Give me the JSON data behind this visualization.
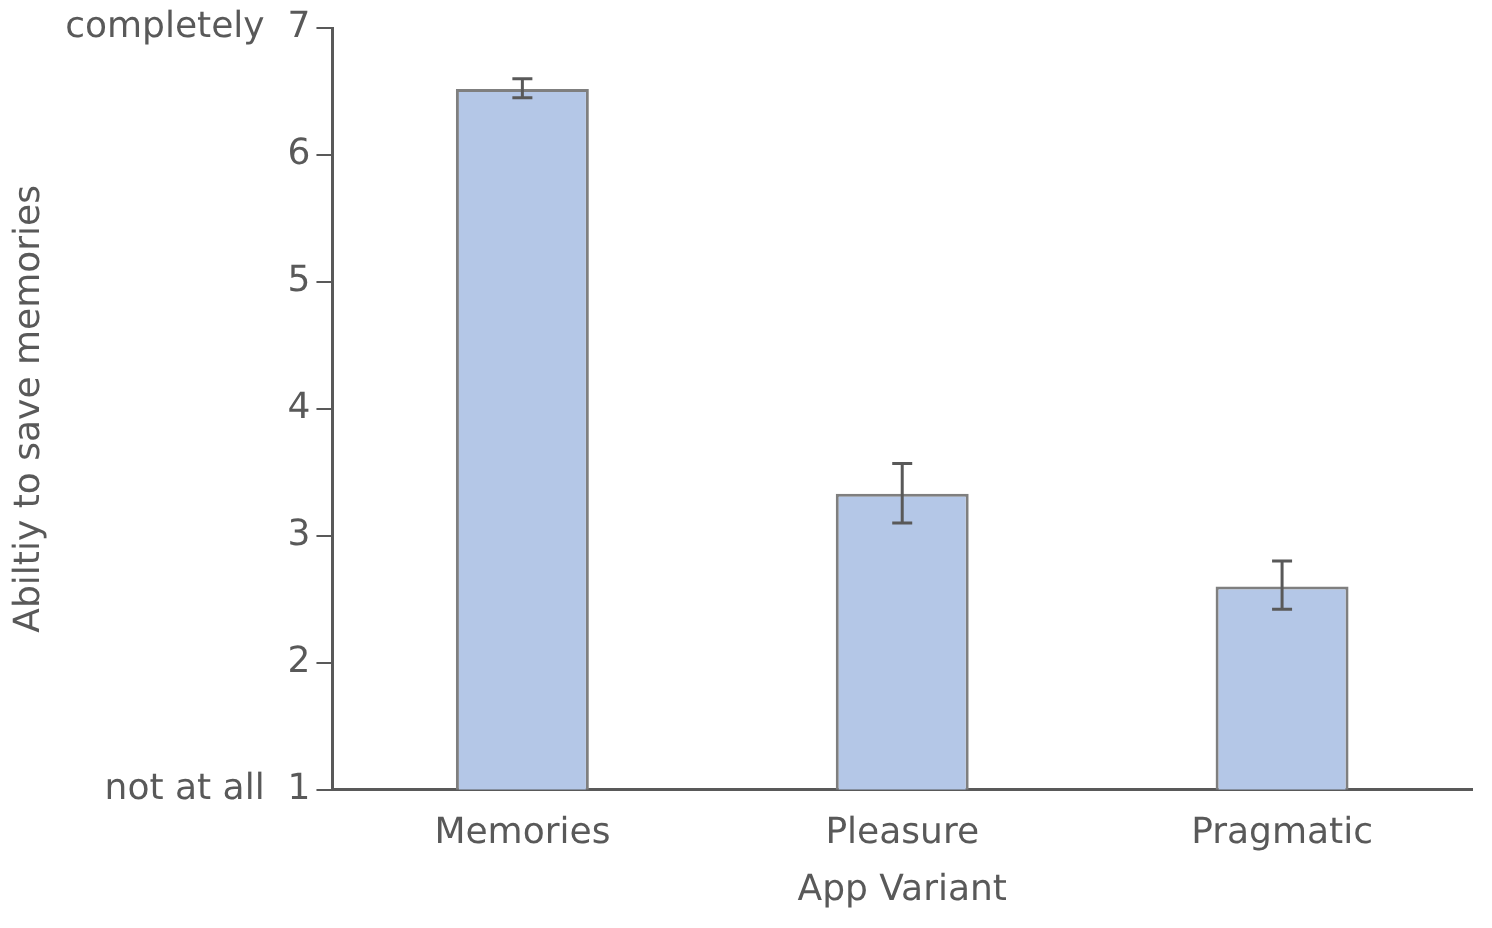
{
  "chart_data": {
    "type": "bar",
    "xlabel": "App Variant",
    "ylabel": "Abiltiy to save memories",
    "categories": [
      "Memories",
      "Pleasure",
      "Pragmatic"
    ],
    "values": [
      6.52,
      3.33,
      2.6
    ],
    "errors": [
      [
        6.45,
        6.6
      ],
      [
        3.1,
        3.57
      ],
      [
        2.42,
        2.8
      ]
    ],
    "color": "#b4c7e7",
    "ylim": [
      1,
      7
    ],
    "yticks": [
      {
        "value": 1,
        "label": "not at all  1"
      },
      2,
      3,
      4,
      5,
      6,
      {
        "value": 7,
        "label": "completely  7"
      }
    ],
    "grid": false
  }
}
